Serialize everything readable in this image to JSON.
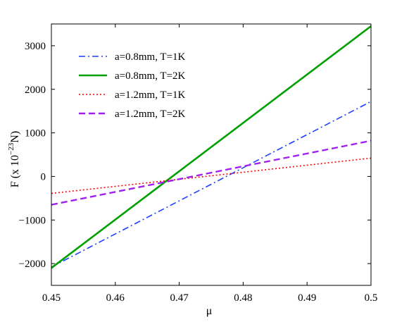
{
  "chart_data": {
    "type": "line",
    "title": "",
    "xlabel": "μ",
    "ylabel": "F  (x 10",
    "ylabel_exponent": "−23",
    "ylabel_suffix": "N)",
    "xlim": [
      0.45,
      0.5
    ],
    "ylim": [
      -2500,
      3500
    ],
    "xticks": [
      0.45,
      0.46,
      0.47,
      0.48,
      0.49,
      0.5
    ],
    "xtick_labels": [
      "0.45",
      "0.46",
      "0.47",
      "0.48",
      "0.49",
      "0.5"
    ],
    "yticks": [
      -2000,
      -1000,
      0,
      1000,
      2000,
      3000
    ],
    "ytick_labels": [
      "−2000",
      "−1000",
      "0",
      "1000",
      "2000",
      "3000"
    ],
    "grid": false,
    "legend_position": "top-left",
    "series": [
      {
        "name": "a=0.8mm, T=1K",
        "color": "#1f3fff",
        "dash": "dashdot",
        "x": [
          0.45,
          0.5
        ],
        "y": [
          -2080,
          1720
        ]
      },
      {
        "name": "a=0.8mm, T=2K",
        "color": "#00a000",
        "dash": "solid",
        "x": [
          0.45,
          0.5
        ],
        "y": [
          -2100,
          3450
        ]
      },
      {
        "name": "a=1.2mm, T=1K",
        "color": "#ff0000",
        "dash": "dotted",
        "x": [
          0.45,
          0.5
        ],
        "y": [
          -390,
          420
        ]
      },
      {
        "name": "a=1.2mm, T=2K",
        "color": "#a020f0",
        "dash": "dashed",
        "x": [
          0.45,
          0.5
        ],
        "y": [
          -650,
          820
        ]
      }
    ]
  }
}
